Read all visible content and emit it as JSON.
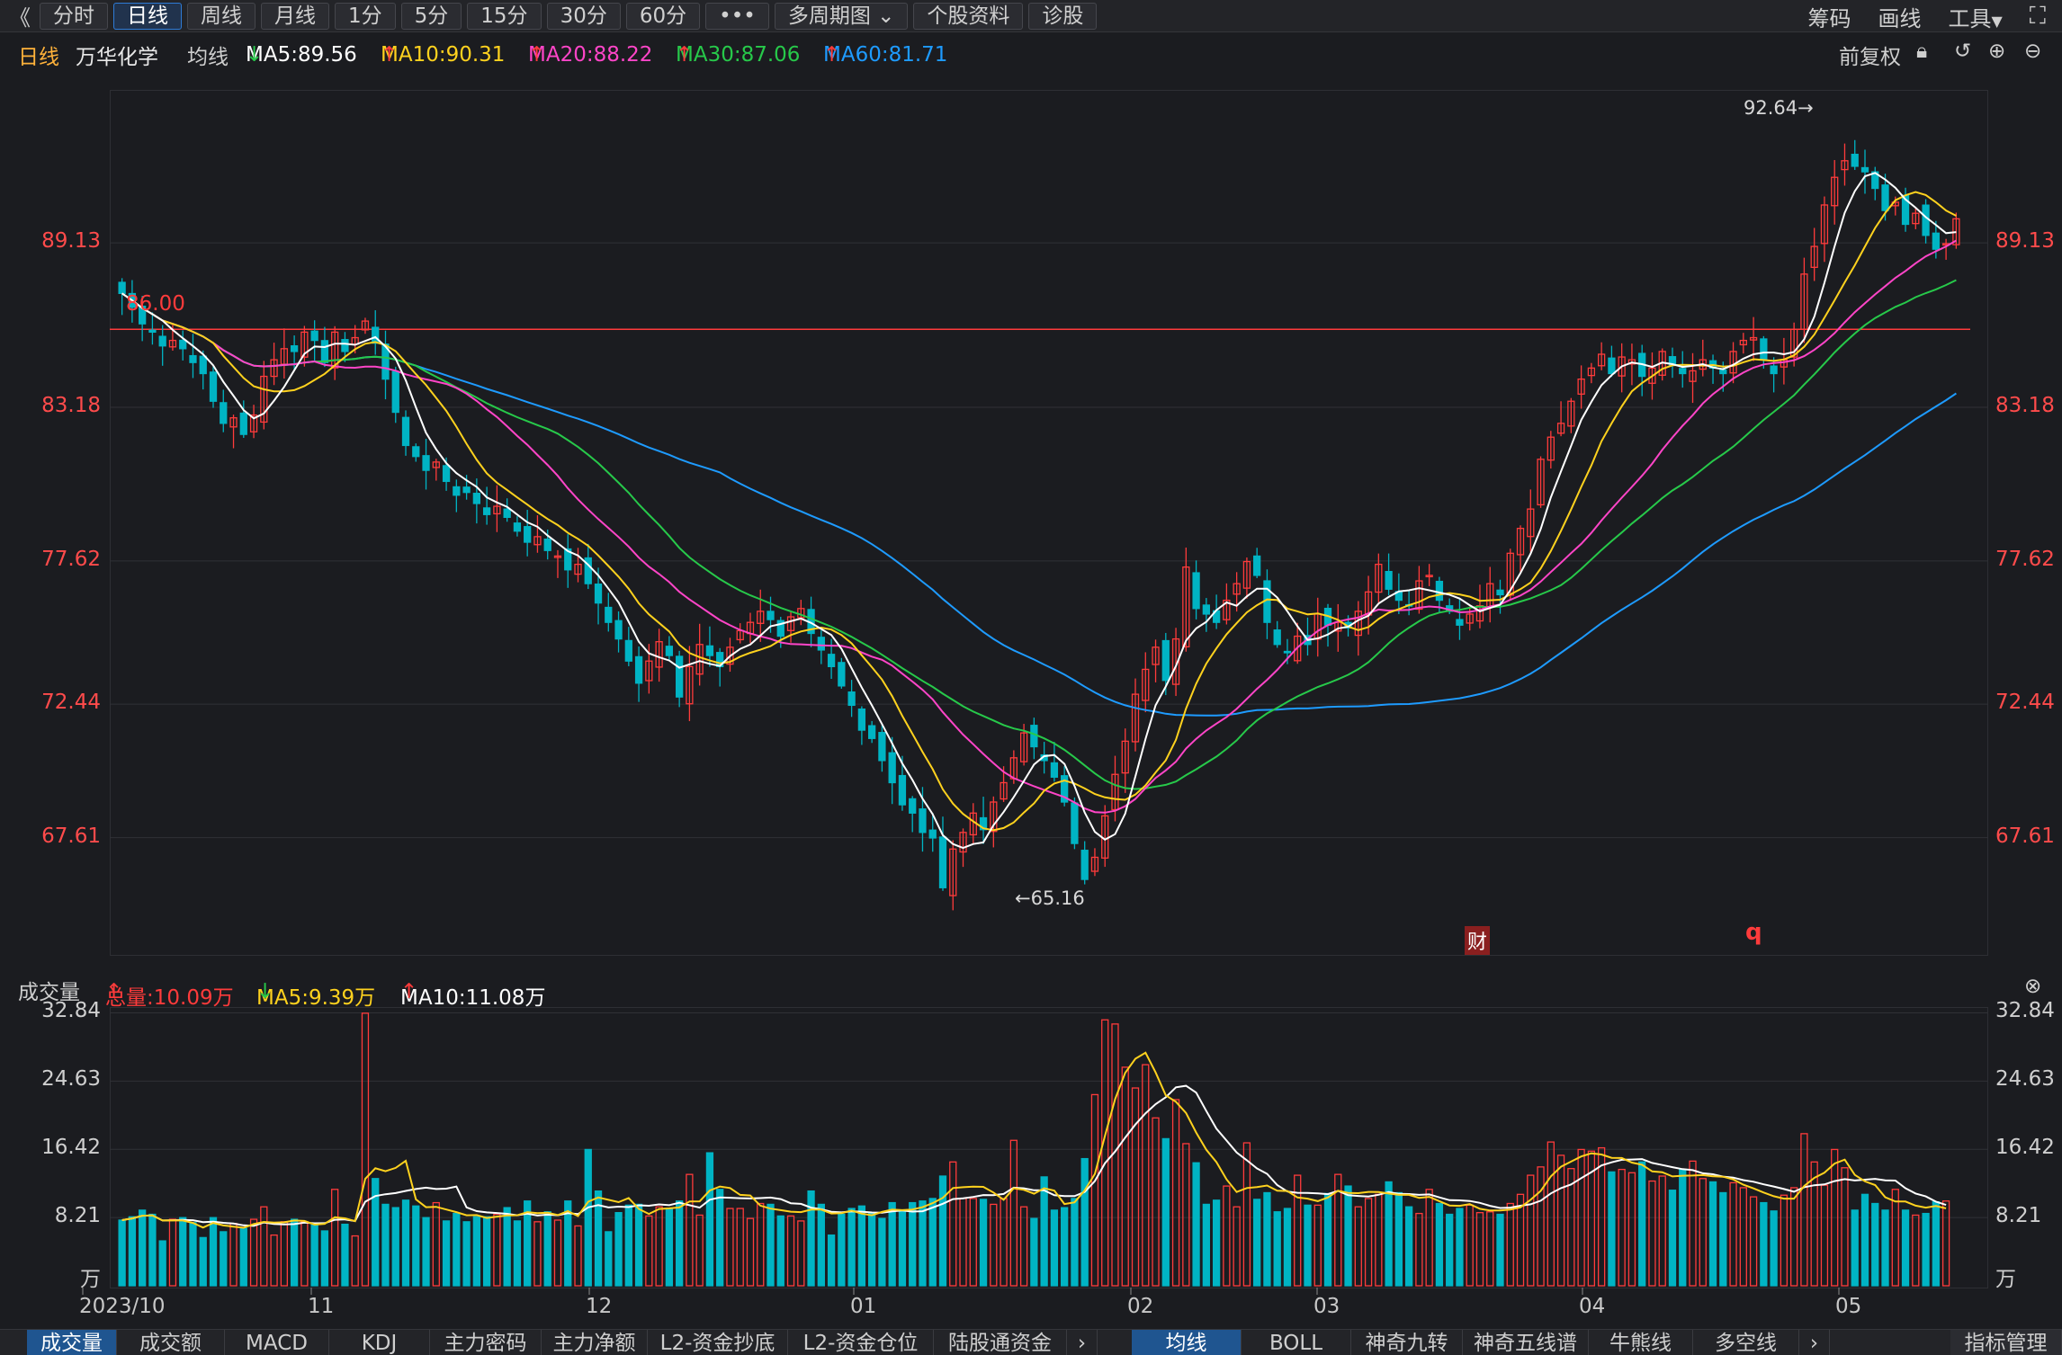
{
  "toolbar": {
    "back": "《",
    "periods": [
      "分时",
      "日线",
      "周线",
      "月线",
      "1分",
      "5分",
      "15分",
      "30分",
      "60分"
    ],
    "active": "日线",
    "more": "•••",
    "multi": "多周期图",
    "profile": "个股资料",
    "diagnose": "诊股",
    "right": [
      "筹码",
      "画线",
      "工具"
    ]
  },
  "info": {
    "period": "日线",
    "stock": "万华化学",
    "ma_label": "均线",
    "ma5": "MA5:89.56",
    "ma10": "MA10:90.31",
    "ma20": "MA20:88.22",
    "ma30": "MA30:87.06",
    "ma60": "MA60:81.71",
    "adjust": "前复权"
  },
  "colors": {
    "up": "#ff3b3b",
    "down": "#00b4c4",
    "ma5": "#ffffff",
    "ma10": "#ffd21e",
    "ma20": "#ff45c8",
    "ma30": "#27c94a",
    "ma60": "#1e9bff"
  },
  "price_axis": {
    "ticks": [
      "89.13",
      "83.18",
      "77.62",
      "72.44",
      "67.61"
    ]
  },
  "annotations": {
    "high": "92.64→",
    "low": "←65.16",
    "line_value": "86.00",
    "fin_badge": "财",
    "q_marker": "q"
  },
  "volume": {
    "title": "成交量",
    "total": "总量:10.09万",
    "ma5": "MA5:9.39万",
    "ma10": "MA10:11.08万",
    "ticks": [
      "32.84",
      "24.63",
      "16.42",
      "8.21"
    ],
    "unit": "万"
  },
  "x_axis": [
    "2023/10",
    "11",
    "12",
    "01",
    "02",
    "03",
    "04",
    "05"
  ],
  "tabs_left": [
    "成交量",
    "成交额",
    "MACD",
    "KDJ",
    "主力密码",
    "主力净额",
    "L2-资金抄底",
    "L2-资金仓位",
    "陆股通资金"
  ],
  "tabs_right": [
    "均线",
    "BOLL",
    "神奇九转",
    "神奇五线谱",
    "牛熊线",
    "多空线"
  ],
  "indicator_mgmt": "指标管理",
  "chart_data": {
    "type": "candlestick",
    "ylim": [
      63.5,
      94.5
    ],
    "volume_ylim": [
      0,
      33
    ],
    "closes": [
      87.3,
      86.8,
      86.2,
      85.9,
      85.4,
      85.6,
      85.3,
      84.8,
      84.4,
      83.4,
      82.6,
      82.8,
      82.2,
      82.9,
      84.3,
      84.9,
      85.3,
      85.2,
      85.9,
      85.6,
      84.8,
      85.9,
      85.2,
      85.7,
      86.3,
      85.5,
      84.2,
      83.0,
      81.8,
      81.4,
      80.9,
      81.2,
      80.5,
      80.0,
      80.1,
      79.7,
      79.3,
      79.6,
      79.2,
      78.7,
      78.3,
      78.5,
      78.0,
      77.8,
      77.3,
      77.5,
      76.8,
      76.1,
      75.4,
      74.8,
      74.0,
      73.2,
      74.0,
      74.7,
      74.2,
      72.7,
      73.8,
      74.6,
      74.2,
      73.8,
      74.5,
      75.1,
      75.4,
      75.8,
      75.5,
      74.9,
      75.6,
      75.9,
      75.0,
      74.4,
      73.8,
      73.1,
      72.4,
      71.5,
      71.2,
      70.4,
      69.6,
      68.8,
      68.5,
      67.8,
      67.6,
      65.8,
      67.2,
      67.8,
      68.5,
      67.9,
      68.9,
      69.6,
      70.5,
      71.4,
      70.9,
      70.4,
      69.8,
      68.9,
      67.4,
      66.1,
      66.9,
      68.4,
      69.9,
      71.1,
      72.8,
      73.7,
      74.5,
      73.3,
      74.8,
      77.4,
      75.9,
      75.7,
      75.4,
      76.2,
      76.8,
      77.6,
      77.1,
      75.4,
      74.6,
      74.3,
      74.9,
      74.6,
      75.7,
      75.3,
      75.4,
      75.2,
      75.8,
      76.5,
      77.5,
      76.6,
      76.2,
      76.0,
      76.9,
      77.1,
      76.2,
      75.8,
      75.3,
      75.7,
      76.0,
      76.8,
      76.4,
      77.9,
      78.8,
      79.5,
      81.3,
      82.1,
      82.6,
      83.4,
      84.2,
      84.6,
      85.1,
      84.4,
      85.0,
      84.9,
      84.3,
      84.6,
      85.2,
      84.7,
      84.4,
      84.5,
      84.9,
      84.6,
      84.4,
      85.2,
      85.6,
      85.7,
      84.9,
      84.4,
      84.9,
      86.0,
      88.0,
      89.0,
      90.5,
      91.5,
      92.1,
      91.9,
      91.7,
      91.1,
      90.3,
      90.6,
      89.8,
      90.2,
      89.4,
      88.9,
      89.1,
      90.0
    ],
    "volumes": [
      7.9,
      8.3,
      9.1,
      8.6,
      5.4,
      8.0,
      8.2,
      7.6,
      5.8,
      8.2,
      6.5,
      7.5,
      6.9,
      8.0,
      9.5,
      6.1,
      7.7,
      8.0,
      7.7,
      7.3,
      6.6,
      11.6,
      7.4,
      6.0,
      32.8,
      12.9,
      9.8,
      9.4,
      10.3,
      9.6,
      8.2,
      10.0,
      7.8,
      8.7,
      7.7,
      8.3,
      8.3,
      8.6,
      9.4,
      7.8,
      10.2,
      7.7,
      8.9,
      7.9,
      10.2,
      7.2,
      16.4,
      11.4,
      6.5,
      8.8,
      9.7,
      9.8,
      8.4,
      9.5,
      9.2,
      10.2,
      13.4,
      8.5,
      16.0,
      11.6,
      9.3,
      9.3,
      8.1,
      9.9,
      9.8,
      8.4,
      8.4,
      7.8,
      11.4,
      9.8,
      6.1,
      8.6,
      9.3,
      9.6,
      8.8,
      8.1,
      10.0,
      9.0,
      10.0,
      10.2,
      10.5,
      13.2,
      14.9,
      10.5,
      10.5,
      10.4,
      9.8,
      10.5,
      17.5,
      9.5,
      8.1,
      13.1,
      9.1,
      9.4,
      10.5,
      15.3,
      23.0,
      32.0,
      31.5,
      26.3,
      23.8,
      26.6,
      20.2,
      17.7,
      22.4,
      17.1,
      14.8,
      9.8,
      10.3,
      12.0,
      9.5,
      17.2,
      10.4,
      11.2,
      8.9,
      9.3,
      13.3,
      9.7,
      9.7,
      11.1,
      13.4,
      12.0,
      9.5,
      10.5,
      11.0,
      12.5,
      11.2,
      9.5,
      8.7,
      11.6,
      9.9,
      8.6,
      9.3,
      9.7,
      8.8,
      8.9,
      8.6,
      9.9,
      11.0,
      13.3,
      14.3,
      17.3,
      15.7,
      14.1,
      16.4,
      16.2,
      16.6,
      13.7,
      14.0,
      13.6,
      14.9,
      12.6,
      13.2,
      11.5,
      14.0,
      15.0,
      12.9,
      12.5,
      11.2,
      12.4,
      11.8,
      10.7,
      10.0,
      9.0,
      10.9,
      11.8,
      18.3,
      14.9,
      12.1,
      16.4,
      14.2,
      9.1,
      11.0,
      9.9,
      9.1,
      11.6,
      9.1,
      8.5,
      8.7,
      10.1,
      10.2
    ]
  }
}
